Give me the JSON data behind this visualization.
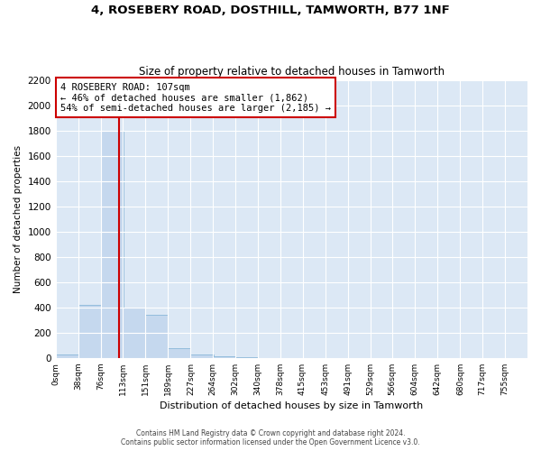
{
  "title1": "4, ROSEBERY ROAD, DOSTHILL, TAMWORTH, B77 1NF",
  "title2": "Size of property relative to detached houses in Tamworth",
  "xlabel": "Distribution of detached houses by size in Tamworth",
  "ylabel": "Number of detached properties",
  "bar_color": "#c5d8ee",
  "bar_edge_color": "#7bafd4",
  "bg_color": "#dce8f5",
  "grid_color": "#ffffff",
  "vline_x": 107,
  "vline_color": "#cc0000",
  "annotation_text": "4 ROSEBERY ROAD: 107sqm\n← 46% of detached houses are smaller (1,862)\n54% of semi-detached houses are larger (2,185) →",
  "annotation_box_color": "#cc0000",
  "footer1": "Contains HM Land Registry data © Crown copyright and database right 2024.",
  "footer2": "Contains public sector information licensed under the Open Government Licence v3.0.",
  "bin_edges": [
    0,
    38,
    76,
    113,
    151,
    189,
    227,
    264,
    302,
    340,
    378,
    415,
    453,
    491,
    529,
    566,
    604,
    642,
    680,
    717,
    755
  ],
  "bin_counts": [
    30,
    420,
    1800,
    400,
    340,
    75,
    25,
    15,
    5,
    0,
    0,
    0,
    0,
    0,
    0,
    0,
    0,
    0,
    0,
    0
  ],
  "ylim": [
    0,
    2200
  ],
  "yticks": [
    0,
    200,
    400,
    600,
    800,
    1000,
    1200,
    1400,
    1600,
    1800,
    2000,
    2200
  ]
}
